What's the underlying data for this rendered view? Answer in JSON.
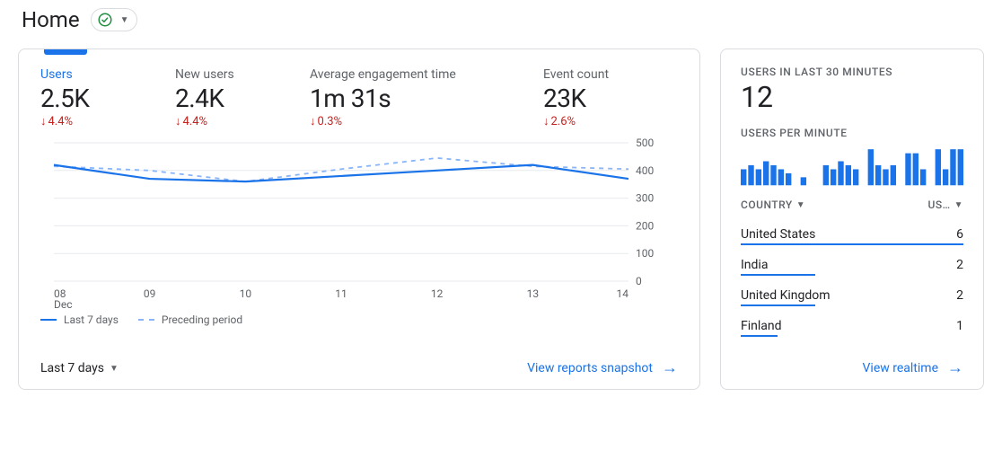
{
  "header": {
    "title": "Home"
  },
  "main": {
    "metrics": [
      {
        "key": "users",
        "label": "Users",
        "value": "2.5K",
        "delta": "4.4%",
        "dir": "down",
        "active": true
      },
      {
        "key": "new_users",
        "label": "New users",
        "value": "2.4K",
        "delta": "4.4%",
        "dir": "down"
      },
      {
        "key": "avg_engage",
        "label": "Average engagement time",
        "value": "1m 31s",
        "delta": "0.3%",
        "dir": "down"
      },
      {
        "key": "events",
        "label": "Event count",
        "value": "23K",
        "delta": "2.6%",
        "dir": "down"
      }
    ],
    "chart": {
      "type": "line",
      "ylim": [
        0,
        500
      ],
      "ytick_step": 100,
      "y_ticks": [
        0,
        100,
        200,
        300,
        400,
        500
      ],
      "x_labels": [
        "08",
        "09",
        "10",
        "11",
        "12",
        "13",
        "14"
      ],
      "x_sublabel": "Dec",
      "series_current": [
        420,
        370,
        360,
        380,
        400,
        420,
        370
      ],
      "series_prev": [
        415,
        400,
        360,
        405,
        445,
        415,
        405
      ],
      "color_current": "#1a73e8",
      "color_prev": "#8ab4f8",
      "grid_color": "#e8eaed",
      "background_color": "#ffffff"
    },
    "legend": {
      "current": "Last 7 days",
      "prev": "Preceding period"
    },
    "range_picker": "Last 7 days",
    "footer_link": "View reports snapshot"
  },
  "side": {
    "title_30min": "USERS IN LAST 30 MINUTES",
    "users_30min": "12",
    "title_per_min": "USERS PER MINUTE",
    "sparkline": {
      "type": "bar",
      "color": "#1a73e8",
      "ymax": 10,
      "values": [
        4,
        5,
        4,
        6,
        5,
        4,
        3,
        0,
        2,
        0,
        0,
        5,
        4,
        6,
        5,
        4,
        0,
        9,
        5,
        4,
        5,
        0,
        8,
        8,
        4,
        0,
        9,
        4,
        9,
        9
      ]
    },
    "table": {
      "col_country": "COUNTRY",
      "col_users": "US…",
      "max_bar": 6,
      "rows": [
        {
          "country": "United States",
          "users": 6
        },
        {
          "country": "India",
          "users": 2
        },
        {
          "country": "United Kingdom",
          "users": 2
        },
        {
          "country": "Finland",
          "users": 1
        }
      ]
    },
    "footer_link": "View realtime"
  }
}
